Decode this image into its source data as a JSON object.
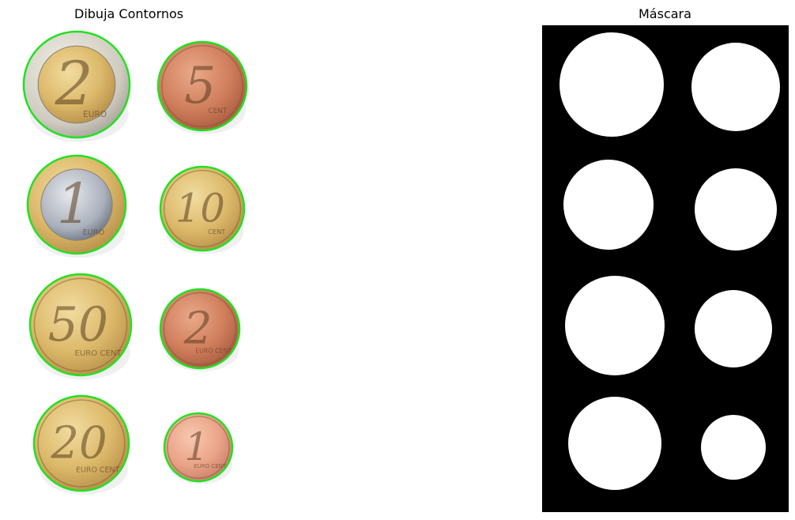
{
  "figure": {
    "left_title": "Dibuja Contornos",
    "right_title": "Máscara"
  },
  "coins": [
    {
      "numeral": "2",
      "label": "EURO",
      "type": "bimetal-2euro"
    },
    {
      "numeral": "5",
      "label": "CENT",
      "type": "copper"
    },
    {
      "numeral": "1",
      "label": "EURO",
      "type": "bimetal-1euro"
    },
    {
      "numeral": "10",
      "label": "CENT",
      "type": "gold"
    },
    {
      "numeral": "50",
      "label": "EURO CENT",
      "type": "gold"
    },
    {
      "numeral": "2",
      "label": "EURO CENT",
      "type": "copper"
    },
    {
      "numeral": "20",
      "label": "EURO CENT",
      "type": "gold"
    },
    {
      "numeral": "1",
      "label": "EURO CENT",
      "type": "copper-light"
    }
  ],
  "colors": {
    "contour": "#22e022",
    "mask_bg": "#000000",
    "mask_fg": "#ffffff"
  }
}
